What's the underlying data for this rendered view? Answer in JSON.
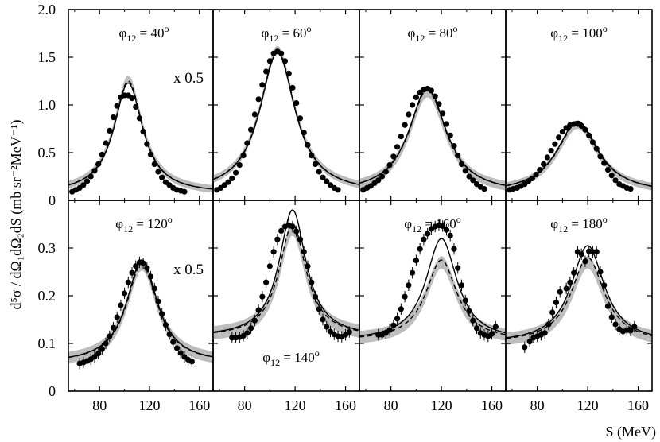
{
  "figure": {
    "ylabel": "d⁵σ / dΩ₁dΩ₂dS (mb sr⁻²MeV⁻¹)",
    "xlabel": "S (MeV)",
    "scale_note": "x 0.5",
    "top_yticks": [
      "0",
      "0.5",
      "1.0",
      "1.5",
      "2.0"
    ],
    "bottom_yticks": [
      "0",
      "0.1",
      "0.2",
      "0.3"
    ],
    "xticks": [
      "80",
      "120",
      "160"
    ]
  },
  "chart_data": [
    {
      "type": "line",
      "label": "φ12 = 40°",
      "scaled": true,
      "xlim": [
        55,
        171
      ],
      "ylim": [
        0,
        2.0
      ],
      "center": 103,
      "width": 14,
      "base": 0.07,
      "peak_solid": 1.23,
      "peak_dashed": 1.25,
      "peak_band": 1.27,
      "band_halfwidth": 0.04,
      "points": [
        [
          58,
          0.09
        ],
        [
          61,
          0.11
        ],
        [
          64,
          0.13
        ],
        [
          67,
          0.16
        ],
        [
          70,
          0.2
        ],
        [
          73,
          0.25
        ],
        [
          76,
          0.31
        ],
        [
          79,
          0.38
        ],
        [
          82,
          0.48
        ],
        [
          85,
          0.6
        ],
        [
          88,
          0.73
        ],
        [
          91,
          0.87
        ],
        [
          94,
          0.99
        ],
        [
          97,
          1.08
        ],
        [
          100,
          1.1
        ],
        [
          103,
          1.1
        ],
        [
          106,
          1.07
        ],
        [
          109,
          0.98
        ],
        [
          112,
          0.86
        ],
        [
          115,
          0.72
        ],
        [
          118,
          0.59
        ],
        [
          121,
          0.48
        ],
        [
          124,
          0.38
        ],
        [
          127,
          0.3
        ],
        [
          130,
          0.24
        ],
        [
          133,
          0.19
        ],
        [
          136,
          0.16
        ],
        [
          139,
          0.13
        ],
        [
          142,
          0.11
        ],
        [
          145,
          0.1
        ],
        [
          148,
          0.09
        ]
      ]
    },
    {
      "type": "line",
      "label": "φ12 = 60°",
      "xlim": [
        55,
        171
      ],
      "ylim": [
        0,
        2.0
      ],
      "center": 106,
      "width": 17,
      "base": 0.07,
      "peak_solid": 1.55,
      "peak_dashed": 1.57,
      "peak_band": 1.58,
      "band_halfwidth": 0.04,
      "points": [
        [
          58,
          0.11
        ],
        [
          61,
          0.13
        ],
        [
          64,
          0.16
        ],
        [
          67,
          0.19
        ],
        [
          70,
          0.23
        ],
        [
          73,
          0.29
        ],
        [
          76,
          0.37
        ],
        [
          79,
          0.47
        ],
        [
          82,
          0.6
        ],
        [
          85,
          0.74
        ],
        [
          88,
          0.9
        ],
        [
          91,
          1.06
        ],
        [
          94,
          1.21
        ],
        [
          97,
          1.35
        ],
        [
          100,
          1.46
        ],
        [
          103,
          1.54
        ],
        [
          106,
          1.56
        ],
        [
          109,
          1.54
        ],
        [
          112,
          1.46
        ],
        [
          115,
          1.33
        ],
        [
          118,
          1.18
        ],
        [
          121,
          1.02
        ],
        [
          124,
          0.86
        ],
        [
          127,
          0.71
        ],
        [
          130,
          0.58
        ],
        [
          133,
          0.47
        ],
        [
          136,
          0.38
        ],
        [
          139,
          0.3
        ],
        [
          142,
          0.24
        ],
        [
          145,
          0.2
        ],
        [
          148,
          0.16
        ],
        [
          151,
          0.13
        ],
        [
          154,
          0.11
        ]
      ]
    },
    {
      "type": "line",
      "label": "φ12 = 80°",
      "xlim": [
        55,
        171
      ],
      "ylim": [
        0,
        2.0
      ],
      "center": 109,
      "width": 18,
      "base": 0.07,
      "peak_solid": 1.18,
      "peak_dashed": 1.16,
      "peak_band": 1.13,
      "band_halfwidth": 0.05,
      "points": [
        [
          58,
          0.11
        ],
        [
          61,
          0.13
        ],
        [
          64,
          0.15
        ],
        [
          67,
          0.18
        ],
        [
          70,
          0.21
        ],
        [
          73,
          0.25
        ],
        [
          76,
          0.3
        ],
        [
          79,
          0.37
        ],
        [
          82,
          0.46
        ],
        [
          85,
          0.56
        ],
        [
          88,
          0.67
        ],
        [
          91,
          0.79
        ],
        [
          94,
          0.9
        ],
        [
          97,
          1.0
        ],
        [
          100,
          1.08
        ],
        [
          103,
          1.13
        ],
        [
          106,
          1.16
        ],
        [
          109,
          1.17
        ],
        [
          112,
          1.15
        ],
        [
          115,
          1.09
        ],
        [
          118,
          1.01
        ],
        [
          121,
          0.91
        ],
        [
          124,
          0.8
        ],
        [
          127,
          0.68
        ],
        [
          130,
          0.57
        ],
        [
          133,
          0.47
        ],
        [
          136,
          0.38
        ],
        [
          139,
          0.31
        ],
        [
          142,
          0.25
        ],
        [
          145,
          0.21
        ],
        [
          148,
          0.17
        ],
        [
          151,
          0.14
        ],
        [
          154,
          0.12
        ]
      ]
    },
    {
      "type": "line",
      "label": "φ12 = 100°",
      "xlim": [
        55,
        171
      ],
      "ylim": [
        0,
        2.0
      ],
      "center": 112,
      "width": 20,
      "base": 0.07,
      "peak_solid": 0.83,
      "peak_dashed": 0.81,
      "peak_band": 0.79,
      "band_halfwidth": 0.04,
      "points": [
        [
          58,
          0.11
        ],
        [
          61,
          0.12
        ],
        [
          64,
          0.13
        ],
        [
          67,
          0.15
        ],
        [
          70,
          0.17
        ],
        [
          73,
          0.2
        ],
        [
          76,
          0.23
        ],
        [
          79,
          0.27
        ],
        [
          82,
          0.32
        ],
        [
          85,
          0.38
        ],
        [
          88,
          0.45
        ],
        [
          91,
          0.52
        ],
        [
          94,
          0.59
        ],
        [
          97,
          0.66
        ],
        [
          100,
          0.72
        ],
        [
          103,
          0.76
        ],
        [
          106,
          0.79
        ],
        [
          109,
          0.8
        ],
        [
          112,
          0.8
        ],
        [
          115,
          0.78
        ],
        [
          118,
          0.74
        ],
        [
          121,
          0.68
        ],
        [
          124,
          0.61
        ],
        [
          127,
          0.54
        ],
        [
          130,
          0.46
        ],
        [
          133,
          0.39
        ],
        [
          136,
          0.32
        ],
        [
          139,
          0.26
        ],
        [
          142,
          0.21
        ],
        [
          145,
          0.17
        ],
        [
          148,
          0.15
        ],
        [
          151,
          0.13
        ],
        [
          154,
          0.12
        ]
      ]
    },
    {
      "type": "line",
      "label": "φ12 = 120°",
      "scaled": true,
      "xlim": [
        55,
        171
      ],
      "ylim": [
        0,
        0.4
      ],
      "center": 114,
      "width": 15,
      "base": 0.058,
      "peak_solid": 0.275,
      "peak_dashed": 0.268,
      "peak_band": 0.265,
      "band_halfwidth": 0.012,
      "points": [
        [
          64,
          0.058
        ],
        [
          67,
          0.06
        ],
        [
          70,
          0.063
        ],
        [
          73,
          0.067
        ],
        [
          76,
          0.072
        ],
        [
          79,
          0.079
        ],
        [
          82,
          0.088
        ],
        [
          85,
          0.1
        ],
        [
          88,
          0.115
        ],
        [
          91,
          0.133
        ],
        [
          94,
          0.155
        ],
        [
          97,
          0.18
        ],
        [
          100,
          0.205
        ],
        [
          103,
          0.228
        ],
        [
          106,
          0.248
        ],
        [
          109,
          0.262
        ],
        [
          112,
          0.27
        ],
        [
          115,
          0.268
        ],
        [
          118,
          0.258
        ],
        [
          121,
          0.24
        ],
        [
          124,
          0.215
        ],
        [
          127,
          0.188
        ],
        [
          130,
          0.162
        ],
        [
          133,
          0.139
        ],
        [
          136,
          0.119
        ],
        [
          139,
          0.103
        ],
        [
          142,
          0.09
        ],
        [
          145,
          0.08
        ],
        [
          148,
          0.072
        ],
        [
          151,
          0.066
        ],
        [
          154,
          0.062
        ]
      ]
    },
    {
      "type": "line",
      "label": "φ12 = 140°",
      "xlim": [
        55,
        171
      ],
      "ylim": [
        0,
        0.4
      ],
      "center": 118,
      "width": 13,
      "base": 0.113,
      "peak_solid": 0.38,
      "peak_dashed": 0.35,
      "peak_band": 0.34,
      "band_halfwidth": 0.014,
      "points": [
        [
          70,
          0.112
        ],
        [
          73,
          0.112
        ],
        [
          76,
          0.113
        ],
        [
          79,
          0.116
        ],
        [
          82,
          0.122
        ],
        [
          85,
          0.132
        ],
        [
          88,
          0.148
        ],
        [
          91,
          0.17
        ],
        [
          94,
          0.198
        ],
        [
          97,
          0.228
        ],
        [
          100,
          0.262
        ],
        [
          103,
          0.292
        ],
        [
          106,
          0.318
        ],
        [
          109,
          0.336
        ],
        [
          112,
          0.345
        ],
        [
          115,
          0.348
        ],
        [
          118,
          0.345
        ],
        [
          121,
          0.335
        ],
        [
          124,
          0.318
        ],
        [
          127,
          0.292
        ],
        [
          130,
          0.262
        ],
        [
          133,
          0.228
        ],
        [
          136,
          0.198
        ],
        [
          139,
          0.172
        ],
        [
          142,
          0.15
        ],
        [
          145,
          0.135
        ],
        [
          148,
          0.125
        ],
        [
          151,
          0.119
        ],
        [
          154,
          0.115
        ],
        [
          157,
          0.114
        ],
        [
          160,
          0.118
        ],
        [
          163,
          0.124
        ]
      ]
    },
    {
      "type": "line",
      "label": "φ12 = 160°",
      "xlim": [
        55,
        171
      ],
      "ylim": [
        0,
        0.4
      ],
      "center": 120,
      "width": 15,
      "base": 0.105,
      "peak_solid": 0.32,
      "peak_dashed": 0.275,
      "peak_band": 0.27,
      "band_halfwidth": 0.013,
      "points": [
        [
          70,
          0.118
        ],
        [
          73,
          0.118
        ],
        [
          76,
          0.122
        ],
        [
          79,
          0.128
        ],
        [
          82,
          0.138
        ],
        [
          85,
          0.152
        ],
        [
          88,
          0.172
        ],
        [
          91,
          0.198
        ],
        [
          94,
          0.222
        ],
        [
          97,
          0.248
        ],
        [
          100,
          0.274
        ],
        [
          103,
          0.298
        ],
        [
          106,
          0.318
        ],
        [
          109,
          0.33
        ],
        [
          112,
          0.34
        ],
        [
          115,
          0.345
        ],
        [
          118,
          0.348
        ],
        [
          121,
          0.346
        ],
        [
          124,
          0.338
        ],
        [
          127,
          0.326
        ],
        [
          130,
          0.298
        ],
        [
          133,
          0.258
        ],
        [
          136,
          0.222
        ],
        [
          139,
          0.19
        ],
        [
          142,
          0.168
        ],
        [
          145,
          0.148
        ],
        [
          148,
          0.132
        ],
        [
          151,
          0.122
        ],
        [
          154,
          0.118
        ],
        [
          157,
          0.115
        ],
        [
          160,
          0.12
        ],
        [
          163,
          0.135
        ]
      ]
    },
    {
      "type": "line",
      "label": "φ12 = 180°",
      "xlim": [
        55,
        171
      ],
      "ylim": [
        0,
        0.4
      ],
      "center": 120,
      "width": 16,
      "base": 0.1,
      "peak_solid": 0.305,
      "peak_dashed": 0.28,
      "peak_band": 0.27,
      "band_halfwidth": 0.013,
      "points": [
        [
          70,
          0.092
        ],
        [
          74,
          0.104
        ],
        [
          77,
          0.112
        ],
        [
          80,
          0.115
        ],
        [
          83,
          0.118
        ],
        [
          86,
          0.122
        ],
        [
          89,
          0.14
        ],
        [
          92,
          0.165
        ],
        [
          95,
          0.186
        ],
        [
          98,
          0.208
        ],
        [
          103,
          0.215
        ],
        [
          106,
          0.228
        ],
        [
          109,
          0.248
        ],
        [
          112,
          0.292
        ],
        [
          115,
          0.287
        ],
        [
          118,
          0.272
        ],
        [
          121,
          0.293
        ],
        [
          124,
          0.292
        ],
        [
          127,
          0.292
        ],
        [
          130,
          0.25
        ],
        [
          133,
          0.222
        ],
        [
          136,
          0.178
        ],
        [
          139,
          0.155
        ],
        [
          142,
          0.14
        ],
        [
          145,
          0.13
        ],
        [
          148,
          0.125
        ],
        [
          151,
          0.128
        ],
        [
          154,
          0.127
        ],
        [
          157,
          0.135
        ]
      ]
    }
  ]
}
